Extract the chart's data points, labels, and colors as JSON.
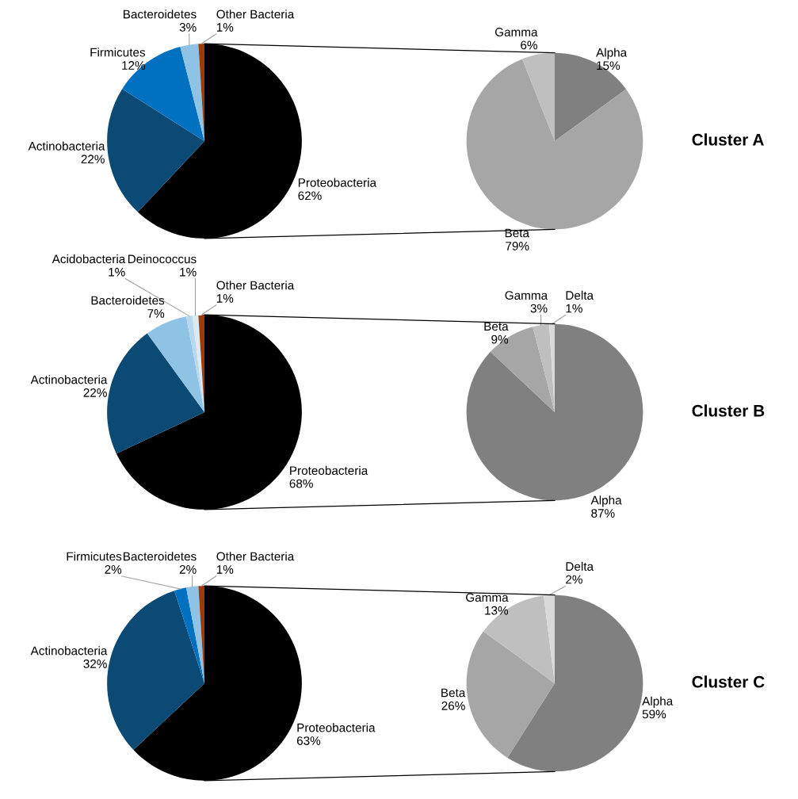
{
  "chart_data": [
    {
      "type": "pie",
      "categories": [
        "Proteobacteria",
        "Actinobacteria",
        "Firmicutes",
        "Bacteroidetes",
        "Other Bacteria"
      ],
      "values": [
        62,
        22,
        12,
        3,
        1
      ],
      "value_labels": [
        "62%",
        "22%",
        "12%",
        "3%",
        "1%"
      ],
      "colors": [
        "#000000",
        "#0b4a75",
        "#0070c0",
        "#8ec3e6",
        "#9c3b0a"
      ]
    },
    {
      "type": "pie",
      "categories": [
        "Alpha",
        "Beta",
        "Gamma"
      ],
      "values": [
        15,
        79,
        6
      ],
      "value_labels": [
        "15%",
        "79%",
        "6%"
      ],
      "colors": [
        "#808080",
        "#a6a6a6",
        "#bfbfbf"
      ],
      "annotations": [
        "Cluster A"
      ]
    },
    {
      "type": "pie",
      "categories": [
        "Proteobacteria",
        "Actinobacteria",
        "Bacteroidetes",
        "Acidobacteria",
        "Deinococcus",
        "Other Bacteria"
      ],
      "values": [
        68,
        22,
        7,
        1,
        1,
        1
      ],
      "value_labels": [
        "68%",
        "22%",
        "7%",
        "1%",
        "1%",
        "1%"
      ],
      "colors": [
        "#000000",
        "#0b4a75",
        "#8ec3e6",
        "#b8d8ee",
        "#dbe9f5",
        "#9c3b0a"
      ]
    },
    {
      "type": "pie",
      "categories": [
        "Alpha",
        "Beta",
        "Gamma",
        "Delta"
      ],
      "values": [
        87,
        9,
        3,
        1
      ],
      "value_labels": [
        "87%",
        "9%",
        "3%",
        "1%"
      ],
      "colors": [
        "#808080",
        "#a6a6a6",
        "#bfbfbf",
        "#d9d9d9"
      ],
      "annotations": [
        "Cluster B"
      ]
    },
    {
      "type": "pie",
      "categories": [
        "Proteobacteria",
        "Actinobacteria",
        "Firmicutes",
        "Bacteroidetes",
        "Other Bacteria"
      ],
      "values": [
        63,
        32,
        2,
        2,
        1
      ],
      "value_labels": [
        "63%",
        "32%",
        "2%",
        "2%",
        "1%"
      ],
      "colors": [
        "#000000",
        "#0b4a75",
        "#0070c0",
        "#8ec3e6",
        "#9c3b0a"
      ]
    },
    {
      "type": "pie",
      "categories": [
        "Alpha",
        "Beta",
        "Gamma",
        "Delta"
      ],
      "values": [
        59,
        26,
        13,
        2
      ],
      "value_labels": [
        "59%",
        "26%",
        "13%",
        "2%"
      ],
      "colors": [
        "#808080",
        "#a6a6a6",
        "#bfbfbf",
        "#d9d9d9"
      ],
      "annotations": [
        "Cluster C"
      ]
    }
  ]
}
